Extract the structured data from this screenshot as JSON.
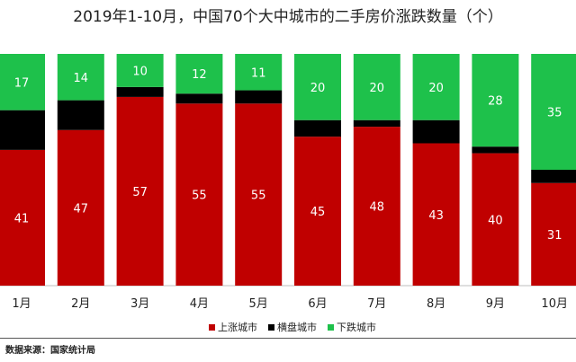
{
  "chart_data": {
    "type": "bar",
    "stacked": true,
    "title": "2019年1-10月，中国70个大中城市的二手房价涨跌数量（个）",
    "categories": [
      "1月",
      "2月",
      "3月",
      "4月",
      "5月",
      "6月",
      "7月",
      "8月",
      "9月",
      "10月"
    ],
    "series": [
      {
        "name": "上涨城市",
        "color": "#c00000",
        "values": [
          41,
          47,
          57,
          55,
          55,
          45,
          48,
          43,
          40,
          31
        ]
      },
      {
        "name": "横盘城市",
        "color": "#000000",
        "values": [
          12,
          9,
          3,
          3,
          4,
          5,
          2,
          7,
          2,
          4
        ]
      },
      {
        "name": "下跌城市",
        "color": "#1ec14b",
        "values": [
          17,
          14,
          10,
          12,
          11,
          20,
          20,
          20,
          28,
          35
        ]
      }
    ],
    "ylim": [
      0,
      70
    ],
    "legend_position": "bottom-center",
    "grid": false,
    "data_labels": {
      "上涨城市": true,
      "横盘城市": false,
      "下跌城市": true
    }
  },
  "source": "数据来源：国家统计局"
}
